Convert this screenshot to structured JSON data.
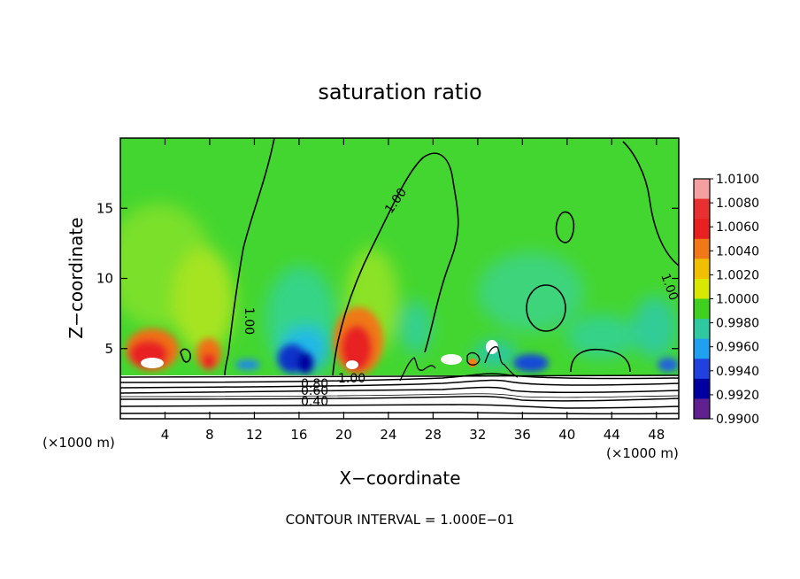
{
  "chart_data": {
    "type": "heatmap",
    "title": "saturation ratio",
    "xlabel": "X−coordinate",
    "ylabel": "Z−coordinate",
    "x_unit_left": "(×1000 m)",
    "x_unit_right": "(×1000 m)",
    "xlim": [
      0,
      50
    ],
    "ylim": [
      0,
      20
    ],
    "x_ticks": [
      4,
      8,
      12,
      16,
      20,
      24,
      28,
      32,
      36,
      40,
      44,
      48
    ],
    "y_ticks": [
      5,
      10,
      15
    ],
    "grid": false,
    "footer": "CONTOUR INTERVAL = 1.000E−01",
    "colorbar": {
      "placement": "right",
      "levels": [
        "1.0100",
        "1.0080",
        "1.0060",
        "1.0040",
        "1.0020",
        "1.0000",
        "0.9980",
        "0.9960",
        "0.9940",
        "0.9920",
        "0.9900"
      ],
      "colors": [
        "#f4a0a0",
        "#e83030",
        "#e82020",
        "#f07818",
        "#f0c000",
        "#d8e800",
        "#40d020",
        "#30c8a0",
        "#20a0f0",
        "#2040e0",
        "#0000a0",
        "#602090"
      ]
    },
    "contour_labels": [
      {
        "text": "1.00",
        "x": 19.5,
        "z": 3.0
      },
      {
        "text": "0.80",
        "x": 17.5,
        "z": 2.6
      },
      {
        "text": "0.60",
        "x": 17.2,
        "z": 2.1
      },
      {
        "text": "0.40",
        "x": 17.2,
        "z": 1.4
      },
      {
        "text": "1.00",
        "x": 11.2,
        "z": 6.7
      },
      {
        "text": "1.00",
        "x": 24.0,
        "z": 15.5
      },
      {
        "text": "1.00",
        "x": 48.3,
        "z": 9.2
      }
    ]
  }
}
